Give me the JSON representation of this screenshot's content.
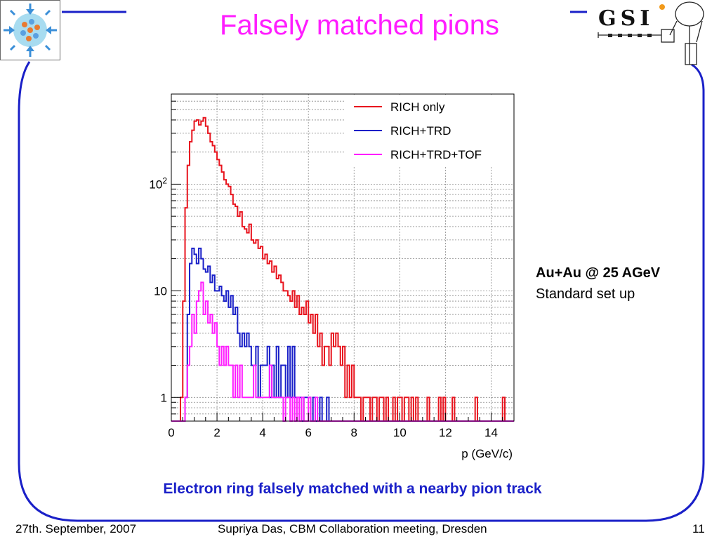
{
  "slide": {
    "title": "Falsely matched pions",
    "annotation": {
      "line1": "Au+Au @ 25 AGeV",
      "line2": "Standard set up"
    },
    "caption": "Electron ring falsely matched with a nearby pion track",
    "footer": {
      "date": "27th. September, 2007",
      "author": "Supriya Das, CBM Collaboration meeting, Dresden",
      "page": "11"
    },
    "logos": {
      "right": "GSI"
    },
    "colors": {
      "title": "#ff1dff",
      "caption": "#1a20c8",
      "frame": "#1a20c8"
    }
  },
  "chart_data": {
    "type": "histogram",
    "xlabel": "p (GeV/c)",
    "ylabel": "",
    "xlim": [
      0,
      15
    ],
    "ylim": [
      0.6,
      700
    ],
    "yscale": "log",
    "grid": true,
    "legend_position": "top-right",
    "bin_width": 0.1,
    "x_ticks": [
      0,
      2,
      4,
      6,
      8,
      10,
      12,
      14
    ],
    "x_tick_labels": [
      "0",
      "2",
      "4",
      "6",
      "8",
      "10",
      "12",
      "14"
    ],
    "y_ticks": [
      1,
      10,
      100
    ],
    "y_tick_labels": [
      "1",
      "10",
      "10^2"
    ],
    "series": [
      {
        "name": "RICH only",
        "color": "#e8141e",
        "values": [
          0,
          0,
          0,
          0,
          1,
          8,
          60,
          150,
          250,
          320,
          390,
          400,
          360,
          390,
          420,
          350,
          300,
          250,
          230,
          200,
          170,
          150,
          130,
          110,
          100,
          95,
          80,
          65,
          62,
          50,
          55,
          40,
          38,
          35,
          42,
          30,
          28,
          30,
          25,
          26,
          20,
          22,
          18,
          19,
          15,
          17,
          13,
          14,
          12,
          10,
          10,
          9,
          8,
          10,
          7,
          9,
          6,
          7,
          6,
          8,
          5,
          6,
          4,
          6,
          3,
          4,
          2,
          3,
          3,
          2,
          4,
          3,
          4,
          3,
          2,
          3,
          1,
          2,
          1,
          2,
          1,
          1,
          1,
          0,
          1,
          1,
          1,
          0,
          1,
          1,
          0,
          1,
          1,
          0,
          1,
          0,
          0,
          1,
          0,
          1,
          1,
          0,
          1,
          1,
          0,
          1,
          0,
          1,
          0,
          0,
          0,
          0,
          1,
          0,
          0,
          0,
          0,
          1,
          0,
          1,
          0,
          0,
          0,
          1,
          0,
          0,
          0,
          0,
          0,
          0,
          0,
          0,
          0,
          1,
          0,
          0,
          0,
          0,
          0,
          0,
          0,
          0,
          0,
          0,
          0,
          1,
          0,
          0,
          0
        ]
      },
      {
        "name": "RICH+TRD",
        "color": "#1a20c8",
        "values": [
          0,
          0,
          0,
          0,
          0,
          0,
          1,
          6,
          18,
          25,
          22,
          18,
          25,
          20,
          16,
          15,
          17,
          12,
          14,
          10,
          10,
          11,
          9,
          8,
          10,
          7,
          9,
          6,
          7,
          4,
          3,
          4,
          3,
          4,
          3,
          2,
          2,
          3,
          1,
          2,
          2,
          2,
          3,
          1,
          2,
          1,
          3,
          1,
          2,
          2,
          1,
          3,
          1,
          3,
          1,
          1,
          1,
          0,
          1,
          1,
          1,
          0,
          1,
          0,
          0,
          1,
          0,
          0,
          1,
          0,
          0,
          0,
          0,
          0,
          0,
          0,
          0,
          0,
          0,
          0,
          0,
          0,
          0,
          0,
          0,
          0,
          0,
          0,
          0,
          0,
          0,
          0,
          0,
          0,
          0,
          0,
          0,
          0,
          0,
          0,
          0,
          0,
          0,
          0,
          0,
          0,
          0,
          0,
          0,
          0,
          0,
          0,
          0,
          0,
          0,
          0,
          0,
          0,
          0,
          0,
          0,
          0,
          0,
          0,
          0,
          0,
          0,
          0,
          0,
          0,
          0,
          0,
          0,
          0,
          0,
          0,
          0,
          0,
          0,
          0,
          0,
          0,
          0,
          0,
          0,
          0,
          0,
          0,
          0,
          0
        ]
      },
      {
        "name": "RICH+TRD+TOF",
        "color": "#ff1dff",
        "values": [
          0,
          0,
          0,
          0,
          0,
          0,
          1,
          2,
          3,
          6,
          4,
          8,
          10,
          12,
          6,
          8,
          5,
          6,
          4,
          5,
          3,
          2,
          3,
          2,
          3,
          2,
          2,
          1,
          2,
          1,
          2,
          1,
          1,
          1,
          1,
          1,
          2,
          1,
          1,
          1,
          1,
          1,
          1,
          2,
          1,
          1,
          1,
          1,
          1,
          0,
          1,
          1,
          0,
          1,
          0,
          1,
          0,
          1,
          0,
          0,
          1,
          0,
          0,
          1,
          0,
          0,
          0,
          0,
          0,
          0,
          0,
          0,
          0,
          0,
          0,
          0,
          0,
          0,
          0,
          0,
          0,
          0,
          0,
          0,
          0,
          0,
          0,
          0,
          0,
          0,
          0,
          0,
          0,
          0,
          0,
          0,
          0,
          0,
          0,
          0,
          0,
          0,
          0,
          0,
          0,
          0,
          0,
          0,
          0,
          0,
          0,
          0,
          0,
          0,
          0,
          0,
          0,
          0,
          0,
          0,
          0,
          0,
          0,
          0,
          0,
          0,
          0,
          0,
          0,
          0,
          0,
          0,
          0,
          0,
          0,
          0,
          0,
          0,
          0,
          0,
          0,
          0,
          0,
          0,
          0,
          0,
          0,
          0,
          0,
          0
        ]
      }
    ]
  }
}
